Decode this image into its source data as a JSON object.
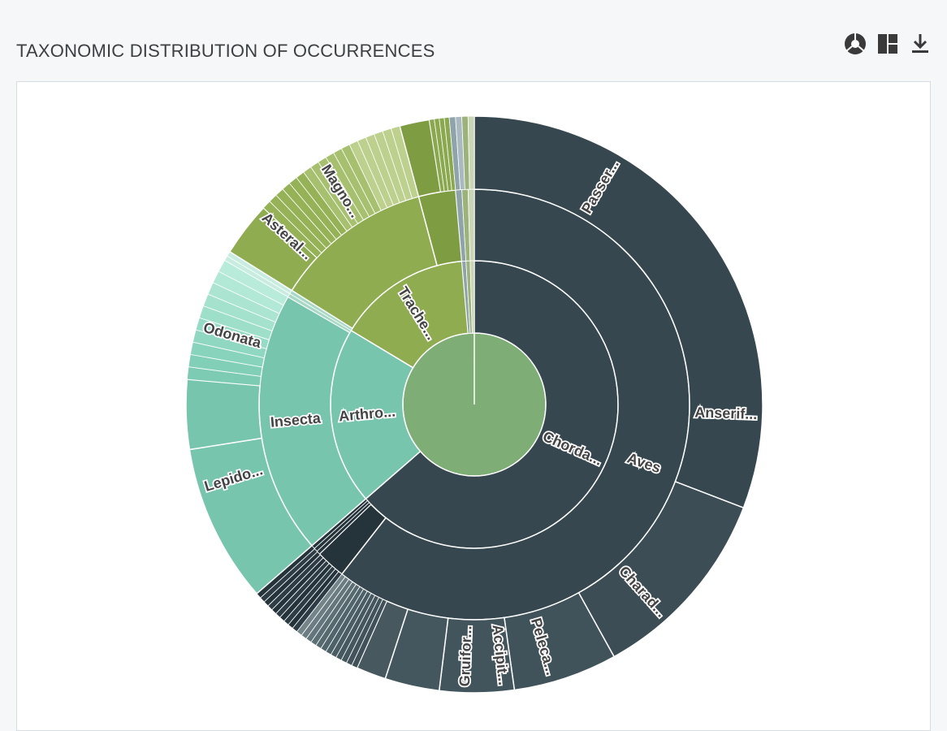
{
  "header": {
    "title": "TAXONOMIC DISTRIBUTION OF OCCURRENCES",
    "icons": [
      "sunburst-icon",
      "treemap-icon",
      "download-icon"
    ]
  },
  "colors": {
    "chordata": "#36474f",
    "chordata_dark": "#25333b",
    "arthropoda": "#78c5ad",
    "tracheophyta": "#8fac50",
    "tracheophyta_dark": "#7e9c42",
    "center": "#7fad76"
  },
  "chart_data": {
    "type": "sunburst",
    "levels": [
      "kingdom",
      "phylum",
      "class",
      "order"
    ],
    "labels": {
      "phylum": [
        "Chorda...",
        "Arthro...",
        "Trache..."
      ],
      "class": [
        "Aves",
        "Insecta"
      ],
      "order": [
        "Passer...",
        "Anserif...",
        "Charad...",
        "Peleca...",
        "Accipit...",
        "Gruifor...",
        "Odonata",
        "Lepido...",
        "Magno...",
        "Asteral..."
      ]
    }
  }
}
